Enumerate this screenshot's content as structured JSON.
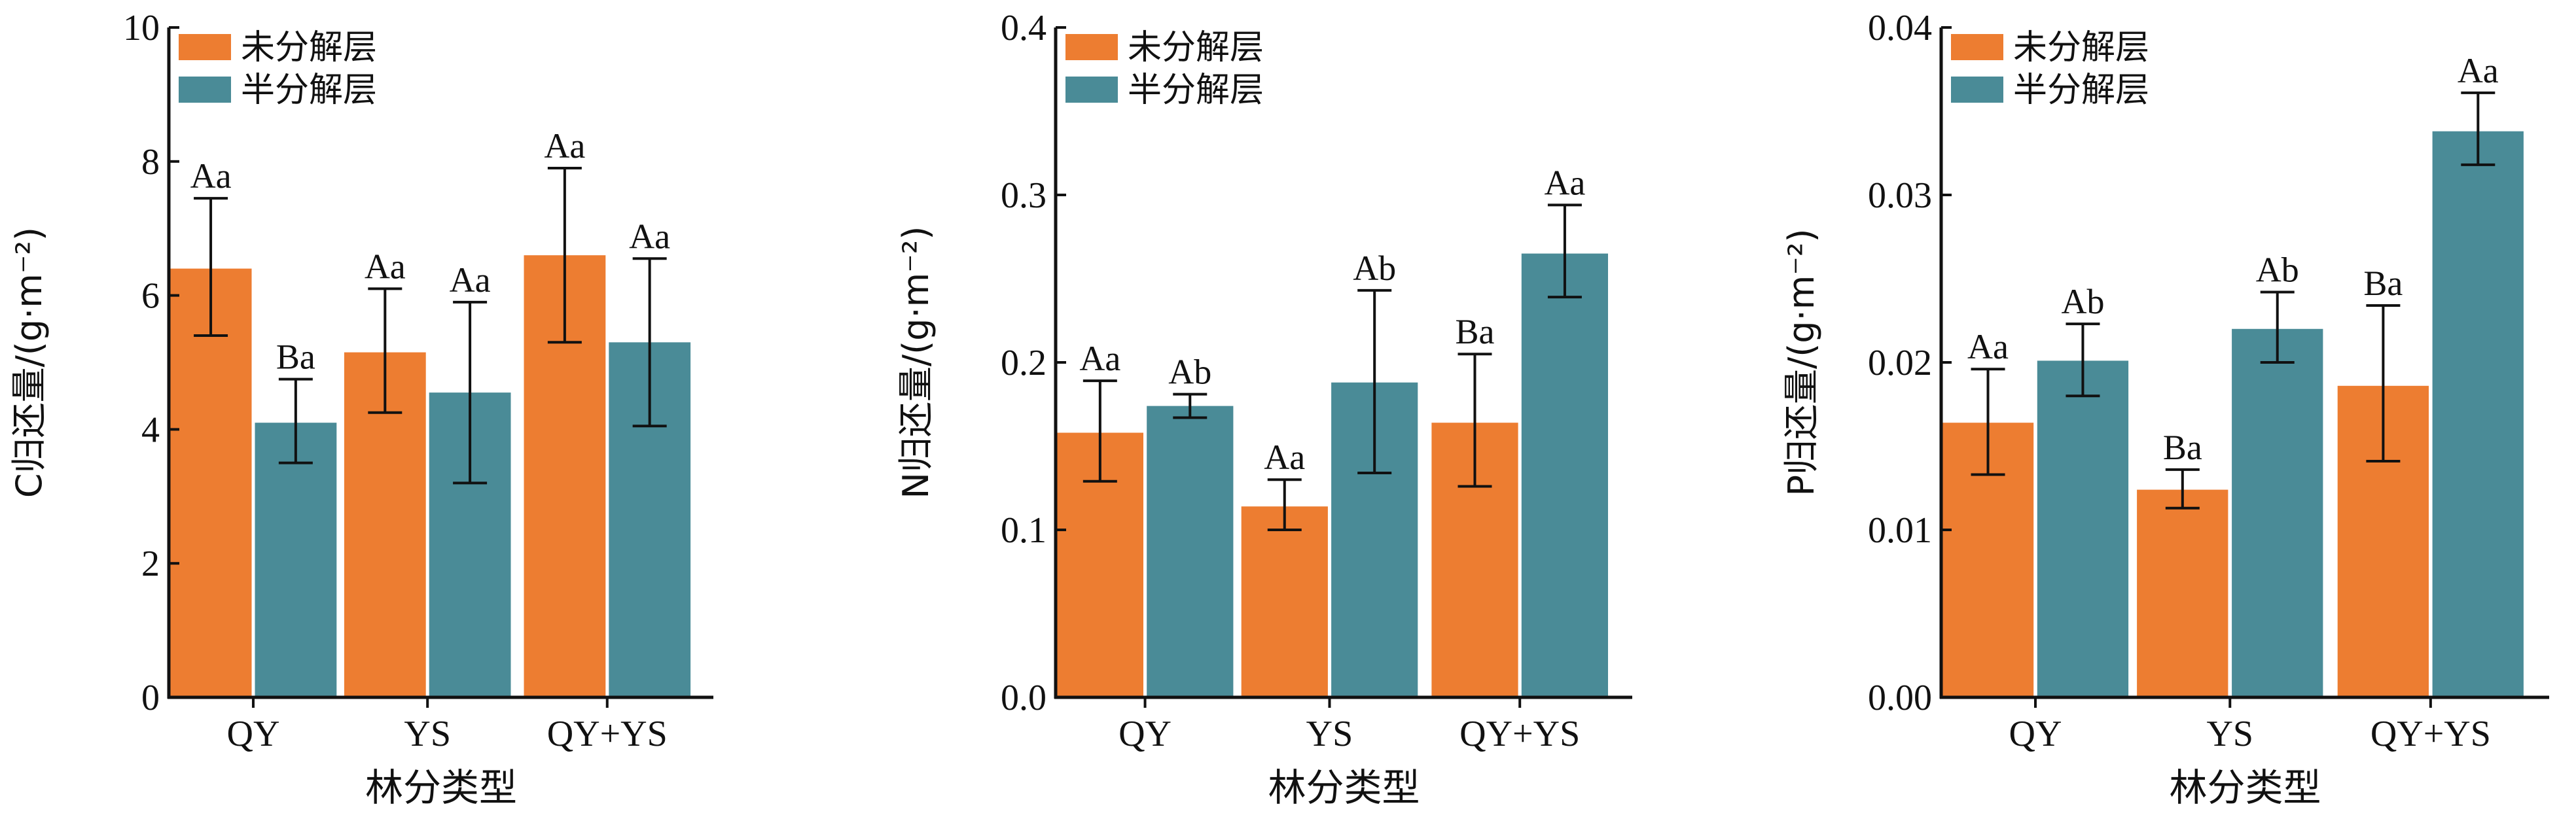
{
  "colors": {
    "undecomposed": "#ED7D31",
    "semi_decomposed": "#4A8B97",
    "axis": "#111111"
  },
  "chart_data": [
    {
      "type": "bar",
      "categories": [
        "QY",
        "YS",
        "QY+YS"
      ],
      "xlabel": "林分类型",
      "ylabel": "C归还量/(g·m⁻²)",
      "ylim": [
        0,
        10
      ],
      "yticks": [
        "0",
        "2",
        "4",
        "6",
        "8",
        "10"
      ],
      "ytick_values": [
        0,
        2,
        4,
        6,
        8,
        10
      ],
      "legend": "top-left",
      "grid": false,
      "series": [
        {
          "name": "未分解层",
          "values": [
            6.4,
            5.15,
            6.6
          ],
          "err_low": [
            5.4,
            4.25,
            5.3
          ],
          "err_high": [
            7.45,
            6.1,
            7.9
          ],
          "labels": [
            "Aa",
            "Aa",
            "Aa"
          ]
        },
        {
          "name": "半分解层",
          "values": [
            4.1,
            4.55,
            5.3
          ],
          "err_low": [
            3.5,
            3.2,
            4.05
          ],
          "err_high": [
            4.75,
            5.9,
            6.55
          ],
          "labels": [
            "Ba",
            "Aa",
            "Aa"
          ]
        }
      ]
    },
    {
      "type": "bar",
      "categories": [
        "QY",
        "YS",
        "QY+YS"
      ],
      "xlabel": "林分类型",
      "ylabel": "N归还量/(g·m⁻²)",
      "ylim": [
        0,
        0.4
      ],
      "yticks": [
        "0.0",
        "0.1",
        "0.2",
        "0.3",
        "0.4"
      ],
      "ytick_values": [
        0,
        0.1,
        0.2,
        0.3,
        0.4
      ],
      "legend": "top-left",
      "grid": false,
      "series": [
        {
          "name": "未分解层",
          "values": [
            0.158,
            0.114,
            0.164
          ],
          "err_low": [
            0.129,
            0.1,
            0.126
          ],
          "err_high": [
            0.189,
            0.13,
            0.205
          ],
          "labels": [
            "Aa",
            "Aa",
            "Ba"
          ]
        },
        {
          "name": "半分解层",
          "values": [
            0.174,
            0.188,
            0.265
          ],
          "err_low": [
            0.167,
            0.134,
            0.239
          ],
          "err_high": [
            0.181,
            0.243,
            0.294
          ],
          "labels": [
            "Ab",
            "Ab",
            "Aa"
          ]
        }
      ]
    },
    {
      "type": "bar",
      "categories": [
        "QY",
        "YS",
        "QY+YS"
      ],
      "xlabel": "林分类型",
      "ylabel": "P归还量/(g·m⁻²)",
      "ylim": [
        0,
        0.04
      ],
      "yticks": [
        "0.00",
        "0.01",
        "0.02",
        "0.03",
        "0.04"
      ],
      "ytick_values": [
        0,
        0.01,
        0.02,
        0.03,
        0.04
      ],
      "legend": "top-left",
      "grid": false,
      "series": [
        {
          "name": "未分解层",
          "values": [
            0.0164,
            0.0124,
            0.0186
          ],
          "err_low": [
            0.0133,
            0.0113,
            0.0141
          ],
          "err_high": [
            0.0196,
            0.0136,
            0.0234
          ],
          "labels": [
            "Aa",
            "Ba",
            "Ba"
          ]
        },
        {
          "name": "半分解层",
          "values": [
            0.0201,
            0.022,
            0.0338
          ],
          "err_low": [
            0.018,
            0.02,
            0.0318
          ],
          "err_high": [
            0.0223,
            0.0242,
            0.0361
          ],
          "labels": [
            "Ab",
            "Ab",
            "Aa"
          ]
        }
      ]
    }
  ]
}
